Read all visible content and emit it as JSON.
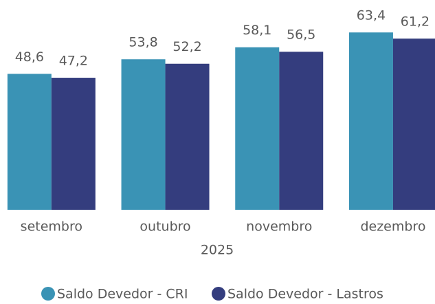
{
  "chart_data": {
    "type": "bar",
    "categories": [
      "setembro",
      "outubro",
      "novembro",
      "dezembro"
    ],
    "x_label": "2025",
    "ylim": [
      0,
      75
    ],
    "series": [
      {
        "name": "Saldo Devedor - CRI",
        "color": "#3a93b5",
        "values": [
          48.6,
          53.8,
          58.1,
          63.4
        ],
        "value_labels": [
          "48,6",
          "53,8",
          "58,1",
          "63,4"
        ]
      },
      {
        "name": "Saldo Devedor - Lastros",
        "color": "#343d7e",
        "values": [
          47.2,
          52.2,
          56.5,
          61.2
        ],
        "value_labels": [
          "47,2",
          "52,2",
          "56,5",
          "61,2"
        ]
      }
    ]
  }
}
